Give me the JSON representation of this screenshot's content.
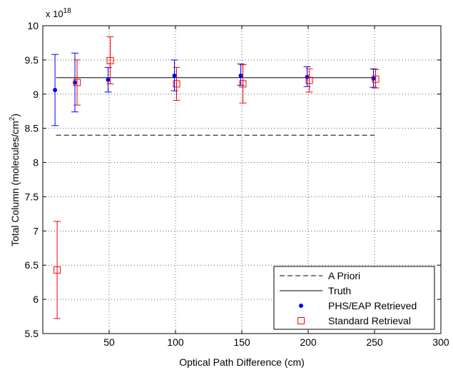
{
  "chart_data": {
    "type": "scatter",
    "title": "",
    "xlabel": "Optical Path Difference (cm)",
    "ylabel": "Total Column (molecules/cm",
    "ylabel_sup": "2",
    "ylabel_end": ")",
    "y_multiplier": "x 10",
    "y_multiplier_exp": "18",
    "xlim": [
      0,
      300
    ],
    "ylim": [
      5.5,
      10
    ],
    "xticks": [
      50,
      100,
      150,
      200,
      250,
      300
    ],
    "yticks": [
      5.5,
      6,
      6.5,
      7,
      7.5,
      8,
      8.5,
      9,
      9.5,
      10
    ],
    "xtick_labels": [
      "50",
      "100",
      "150",
      "200",
      "250",
      "300"
    ],
    "ytick_labels": [
      "5.5",
      "6",
      "6.5",
      "7",
      "7.5",
      "8",
      "8.5",
      "9",
      "9.5",
      "10"
    ],
    "grid": true,
    "legend_position": "bottom-right",
    "series": [
      {
        "name": "A Priori",
        "kind": "line",
        "style": "dashed",
        "color": "#000000",
        "x": [
          10,
          250
        ],
        "y": [
          8.4,
          8.4
        ]
      },
      {
        "name": "Truth",
        "kind": "line",
        "style": "solid",
        "color": "#000000",
        "x": [
          10,
          250
        ],
        "y": [
          9.24,
          9.24
        ]
      },
      {
        "name": "PHS/EAP Retrieved",
        "kind": "points",
        "marker": "dot",
        "color": "#0000ff",
        "x": [
          10,
          25,
          50,
          100,
          150,
          200,
          250
        ],
        "y": [
          9.06,
          9.17,
          9.21,
          9.27,
          9.27,
          9.25,
          9.23
        ],
        "err_low": [
          8.54,
          8.74,
          9.03,
          9.05,
          9.13,
          9.11,
          9.1
        ],
        "err_high": [
          9.58,
          9.6,
          9.39,
          9.5,
          9.44,
          9.4,
          9.37
        ]
      },
      {
        "name": "Standard Retrieval",
        "kind": "points",
        "marker": "square",
        "color": "#ff0000",
        "x": [
          10,
          25,
          50,
          100,
          150,
          200,
          250
        ],
        "y": [
          6.43,
          9.17,
          9.49,
          9.15,
          9.15,
          9.2,
          9.22
        ],
        "err_low": [
          5.72,
          8.84,
          9.15,
          8.91,
          8.87,
          9.03,
          9.09
        ],
        "err_high": [
          7.14,
          9.5,
          9.84,
          9.39,
          9.43,
          9.37,
          9.36
        ]
      }
    ]
  }
}
